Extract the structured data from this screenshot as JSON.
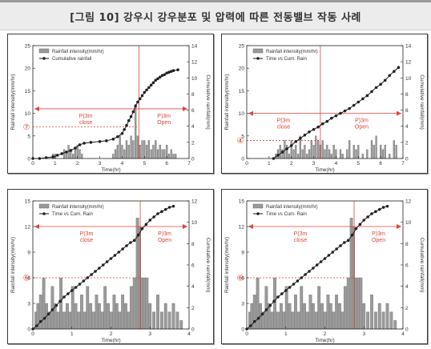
{
  "figure_title": "[그림 10] 강우시 강우분포 및 압력에 따른 전동밸브 작동 사례",
  "chart_data": [
    {
      "type": "bar",
      "xlabel": "Time(hr)",
      "ylabel": "Rainfall intensity(mm/hr)",
      "y2label": "Cumulative rainfall(mm)",
      "xlim": [
        0,
        7
      ],
      "xticks": [
        "0",
        "1",
        "2",
        "3",
        "4",
        "5",
        "6",
        "7"
      ],
      "ylim": [
        0,
        25
      ],
      "yticks": [
        "0",
        "5",
        "10",
        "15",
        "20",
        "25"
      ],
      "y2lim": [
        0,
        14
      ],
      "y2ticks": [
        "0",
        "2",
        "4",
        "6",
        "8",
        "10",
        "12",
        "14"
      ],
      "legend": [
        "Rainfall intensity(mm/hr)",
        "Cumulative rainfall"
      ],
      "legend_position": "top-left",
      "threshold_label": "⑦",
      "threshold_y": 7,
      "switch_x": 4.75,
      "switch_y": 11,
      "left_zone_label": [
        "P(3m",
        "close"
      ],
      "right_zone_label": [
        "P)3m",
        "Open"
      ],
      "bars": [
        [
          0.9,
          1
        ],
        [
          1.0,
          1
        ],
        [
          1.4,
          2
        ],
        [
          1.5,
          1
        ],
        [
          1.6,
          3
        ],
        [
          1.7,
          2
        ],
        [
          1.8,
          1
        ],
        [
          1.9,
          2
        ],
        [
          2.0,
          3
        ],
        [
          2.1,
          2
        ],
        [
          2.2,
          1
        ],
        [
          3.6,
          1
        ],
        [
          3.7,
          2
        ],
        [
          3.8,
          3
        ],
        [
          3.9,
          5
        ],
        [
          4.0,
          3
        ],
        [
          4.1,
          2
        ],
        [
          4.2,
          4
        ],
        [
          4.3,
          3
        ],
        [
          4.4,
          5
        ],
        [
          4.5,
          4
        ],
        [
          4.6,
          12
        ],
        [
          4.7,
          5
        ],
        [
          4.8,
          3
        ],
        [
          4.9,
          4
        ],
        [
          5.0,
          4
        ],
        [
          5.1,
          3
        ],
        [
          5.2,
          4
        ],
        [
          5.3,
          2
        ],
        [
          5.4,
          3
        ],
        [
          5.5,
          4
        ],
        [
          5.6,
          2
        ],
        [
          5.7,
          3
        ],
        [
          5.8,
          2
        ],
        [
          5.9,
          2
        ],
        [
          6.0,
          3
        ],
        [
          6.1,
          1
        ],
        [
          6.2,
          2
        ],
        [
          6.3,
          1
        ],
        [
          6.4,
          1
        ]
      ],
      "series": [
        {
          "name": "Cumulative rainfall",
          "x": [
            0,
            0.3,
            0.6,
            0.9,
            1.1,
            1.3,
            1.5,
            1.7,
            1.9,
            2.1,
            2.3,
            2.6,
            3.0,
            3.3,
            3.6,
            3.8,
            4.0,
            4.1,
            4.2,
            4.3,
            4.4,
            4.5,
            4.6,
            4.7,
            4.8,
            4.9,
            5.0,
            5.1,
            5.2,
            5.3,
            5.4,
            5.5,
            5.6,
            5.7,
            5.8,
            5.9,
            6.0,
            6.1,
            6.2,
            6.3,
            6.5
          ],
          "y": [
            0,
            0,
            0.1,
            0.2,
            0.4,
            0.6,
            0.8,
            1.0,
            1.3,
            1.7,
            1.9,
            2.0,
            2.1,
            2.2,
            2.4,
            2.7,
            3.1,
            3.6,
            4.1,
            4.7,
            5.2,
            5.8,
            6.5,
            7.0,
            7.4,
            7.8,
            8.2,
            8.5,
            8.8,
            9.1,
            9.4,
            9.7,
            9.9,
            10.1,
            10.3,
            10.4,
            10.6,
            10.7,
            10.8,
            10.9,
            11.0
          ]
        }
      ]
    },
    {
      "type": "bar",
      "xlabel": "Time(hr)",
      "ylabel": "Rainfall intensity(mm/hr)",
      "y2label": "Cumulative rainfall(mm)",
      "xlim": [
        0,
        7
      ],
      "xticks": [
        "0",
        "1",
        "2",
        "3",
        "4",
        "5",
        "6",
        "7"
      ],
      "ylim": [
        0,
        25
      ],
      "yticks": [
        "0",
        "5",
        "10",
        "15",
        "20",
        "25"
      ],
      "y2lim": [
        0,
        14
      ],
      "y2ticks": [
        "0",
        "2",
        "4",
        "6",
        "8",
        "10",
        "12",
        "14"
      ],
      "legend": [
        "Rainfall intensity(mm/hr)",
        "Time vs Cum. Rain"
      ],
      "legend_position": "top-left",
      "threshold_label": "④",
      "threshold_y": 4,
      "switch_x": 3.3,
      "switch_y": 10,
      "left_zone_label": [
        "P(3m",
        "close"
      ],
      "right_zone_label": [
        "P)3m",
        "Open"
      ],
      "bars": [
        [
          1.3,
          1
        ],
        [
          1.4,
          2
        ],
        [
          1.5,
          3
        ],
        [
          1.6,
          2
        ],
        [
          1.7,
          4
        ],
        [
          1.8,
          3
        ],
        [
          1.9,
          1
        ],
        [
          2.0,
          4
        ],
        [
          2.1,
          2
        ],
        [
          2.2,
          3
        ],
        [
          2.3,
          1
        ],
        [
          2.4,
          5
        ],
        [
          2.5,
          2
        ],
        [
          2.6,
          3
        ],
        [
          2.7,
          1
        ],
        [
          2.8,
          2
        ],
        [
          2.9,
          4
        ],
        [
          3.0,
          3
        ],
        [
          3.1,
          5
        ],
        [
          3.2,
          4
        ],
        [
          3.3,
          3
        ],
        [
          3.4,
          4
        ],
        [
          3.5,
          2
        ],
        [
          3.6,
          3
        ],
        [
          3.7,
          2
        ],
        [
          3.8,
          1
        ],
        [
          3.9,
          3
        ],
        [
          4.0,
          2
        ],
        [
          4.2,
          2
        ],
        [
          4.3,
          1
        ],
        [
          4.5,
          2
        ],
        [
          4.6,
          4
        ],
        [
          4.8,
          3
        ],
        [
          4.9,
          2
        ],
        [
          5.0,
          3
        ],
        [
          5.2,
          1
        ],
        [
          5.4,
          2
        ],
        [
          5.6,
          4
        ],
        [
          5.7,
          3
        ],
        [
          5.8,
          5
        ],
        [
          6.0,
          3
        ],
        [
          6.1,
          2
        ],
        [
          6.2,
          3
        ],
        [
          6.4,
          1
        ],
        [
          6.6,
          4
        ],
        [
          6.7,
          3
        ]
      ],
      "series": [
        {
          "name": "Time vs Cum. Rain",
          "x": [
            1.2,
            1.4,
            1.6,
            1.8,
            2.0,
            2.2,
            2.4,
            2.6,
            2.8,
            3.0,
            3.2,
            3.4,
            3.6,
            3.8,
            4.0,
            4.2,
            4.4,
            4.6,
            4.8,
            5.0,
            5.2,
            5.4,
            5.6,
            5.8,
            6.0,
            6.2,
            6.4,
            6.6,
            6.8
          ],
          "y": [
            0,
            0.4,
            0.8,
            1.2,
            1.6,
            2.1,
            2.5,
            2.9,
            3.3,
            3.6,
            3.9,
            4.3,
            4.6,
            5.0,
            5.3,
            5.6,
            5.9,
            6.2,
            6.6,
            7.0,
            7.4,
            7.8,
            8.3,
            8.8,
            9.2,
            9.7,
            10.3,
            10.8,
            11.3
          ]
        }
      ]
    },
    {
      "type": "bar",
      "xlabel": "Time(hr)",
      "ylabel": "Rainfall intensity(mm/hr)",
      "y2label": "Cumulative rainfall(mm)",
      "xlim": [
        0,
        4
      ],
      "xticks": [
        "0",
        "1",
        "2",
        "3",
        "4"
      ],
      "ylim": [
        0,
        15
      ],
      "yticks": [
        "0",
        "3",
        "6",
        "9",
        "12",
        "15"
      ],
      "y2lim": [
        0,
        12
      ],
      "y2ticks": [
        "0",
        "2",
        "4",
        "6",
        "8",
        "10",
        "12"
      ],
      "legend": [
        "Rainfall intensity(mm/hr)",
        "Time vs Cum. Rain"
      ],
      "legend_position": "top-left",
      "threshold_label": "⑥",
      "threshold_y": 6,
      "switch_x": 2.75,
      "switch_y": 12,
      "left_zone_label": [
        "P(3m",
        "close"
      ],
      "right_zone_label": [
        "P)3m",
        "Open"
      ],
      "bars": [
        [
          0.08,
          2
        ],
        [
          0.13,
          3
        ],
        [
          0.2,
          4
        ],
        [
          0.28,
          6
        ],
        [
          0.35,
          3
        ],
        [
          0.42,
          2
        ],
        [
          0.5,
          5
        ],
        [
          0.57,
          3
        ],
        [
          0.65,
          2
        ],
        [
          0.72,
          6
        ],
        [
          0.8,
          2
        ],
        [
          0.88,
          3
        ],
        [
          0.95,
          2
        ],
        [
          1.02,
          5
        ],
        [
          1.1,
          3
        ],
        [
          1.18,
          2
        ],
        [
          1.25,
          4
        ],
        [
          1.33,
          2
        ],
        [
          1.4,
          5
        ],
        [
          1.48,
          3
        ],
        [
          1.55,
          2
        ],
        [
          1.63,
          4
        ],
        [
          1.7,
          3
        ],
        [
          1.78,
          2
        ],
        [
          1.85,
          5
        ],
        [
          1.93,
          3
        ],
        [
          2.0,
          2
        ],
        [
          2.08,
          4
        ],
        [
          2.15,
          3
        ],
        [
          2.22,
          2
        ],
        [
          2.3,
          4
        ],
        [
          2.38,
          3
        ],
        [
          2.45,
          2
        ],
        [
          2.52,
          5
        ],
        [
          2.6,
          6
        ],
        [
          2.68,
          13
        ],
        [
          2.73,
          12
        ],
        [
          2.8,
          6
        ],
        [
          2.86,
          6
        ],
        [
          2.92,
          6
        ],
        [
          3.0,
          3
        ],
        [
          3.1,
          2
        ],
        [
          3.2,
          4
        ],
        [
          3.3,
          2
        ],
        [
          3.4,
          3
        ],
        [
          3.5,
          2
        ],
        [
          3.6,
          3
        ],
        [
          3.7,
          2
        ],
        [
          3.8,
          1
        ]
      ],
      "series": [
        {
          "name": "Time vs Cum. Rain",
          "x": [
            0,
            0.1,
            0.2,
            0.3,
            0.4,
            0.5,
            0.6,
            0.7,
            0.8,
            0.9,
            1.0,
            1.1,
            1.2,
            1.3,
            1.4,
            1.5,
            1.6,
            1.7,
            1.8,
            1.9,
            2.0,
            2.1,
            2.2,
            2.3,
            2.4,
            2.5,
            2.6,
            2.7,
            2.8,
            2.9,
            3.0,
            3.1,
            3.2,
            3.3,
            3.4,
            3.5,
            3.6
          ],
          "y": [
            0,
            0.3,
            0.7,
            1.0,
            1.4,
            1.8,
            2.2,
            2.6,
            3.0,
            3.3,
            3.6,
            3.9,
            4.2,
            4.5,
            4.8,
            5.1,
            5.4,
            5.7,
            6.0,
            6.3,
            6.6,
            6.9,
            7.2,
            7.5,
            7.8,
            8.1,
            8.3,
            8.8,
            9.4,
            9.8,
            10.2,
            10.5,
            10.8,
            11.0,
            11.2,
            11.4,
            11.5
          ]
        }
      ]
    },
    {
      "type": "bar",
      "xlabel": "Time(hr)",
      "ylabel": "Rainfall intensity(mm/hr)",
      "y2label": "Cumulative rainfall(mm)",
      "xlim": [
        0,
        4
      ],
      "xticks": [
        "0",
        "1",
        "2",
        "3",
        "4"
      ],
      "ylim": [
        0,
        15
      ],
      "yticks": [
        "0",
        "3",
        "6",
        "9",
        "12",
        "15"
      ],
      "y2lim": [
        0,
        12
      ],
      "y2ticks": [
        "0",
        "2",
        "4",
        "6",
        "8",
        "10",
        "12"
      ],
      "legend": [
        "Rainfall intensity(mm/hr)",
        "Time vs Cum. Rain"
      ],
      "legend_position": "top-left",
      "threshold_label": "⑥",
      "threshold_y": 6,
      "switch_x": 2.75,
      "switch_y": 12,
      "left_zone_label": [
        "P(3m",
        "close"
      ],
      "right_zone_label": [
        "P)3m",
        "Open"
      ],
      "bars": [
        [
          0.08,
          2
        ],
        [
          0.13,
          3
        ],
        [
          0.2,
          4
        ],
        [
          0.28,
          6
        ],
        [
          0.35,
          3
        ],
        [
          0.42,
          2
        ],
        [
          0.5,
          5
        ],
        [
          0.57,
          3
        ],
        [
          0.65,
          2
        ],
        [
          0.72,
          6
        ],
        [
          0.8,
          2
        ],
        [
          0.88,
          3
        ],
        [
          0.95,
          2
        ],
        [
          1.02,
          5
        ],
        [
          1.1,
          3
        ],
        [
          1.18,
          2
        ],
        [
          1.25,
          4
        ],
        [
          1.33,
          2
        ],
        [
          1.4,
          5
        ],
        [
          1.48,
          3
        ],
        [
          1.55,
          2
        ],
        [
          1.63,
          4
        ],
        [
          1.7,
          3
        ],
        [
          1.78,
          2
        ],
        [
          1.85,
          5
        ],
        [
          1.93,
          3
        ],
        [
          2.0,
          2
        ],
        [
          2.08,
          4
        ],
        [
          2.15,
          3
        ],
        [
          2.22,
          2
        ],
        [
          2.3,
          4
        ],
        [
          2.38,
          3
        ],
        [
          2.45,
          2
        ],
        [
          2.52,
          5
        ],
        [
          2.6,
          6
        ],
        [
          2.68,
          13
        ],
        [
          2.73,
          12
        ],
        [
          2.8,
          6
        ],
        [
          2.86,
          6
        ],
        [
          2.92,
          6
        ],
        [
          3.0,
          3
        ],
        [
          3.1,
          2
        ],
        [
          3.2,
          4
        ],
        [
          3.3,
          2
        ],
        [
          3.4,
          3
        ],
        [
          3.5,
          2
        ],
        [
          3.6,
          3
        ],
        [
          3.7,
          2
        ],
        [
          3.8,
          1
        ]
      ],
      "series": [
        {
          "name": "Time vs Cum. Rain",
          "x": [
            0,
            0.1,
            0.2,
            0.3,
            0.4,
            0.5,
            0.6,
            0.7,
            0.8,
            0.9,
            1.0,
            1.1,
            1.2,
            1.3,
            1.4,
            1.5,
            1.6,
            1.7,
            1.8,
            1.9,
            2.0,
            2.1,
            2.2,
            2.3,
            2.4,
            2.5,
            2.6,
            2.7,
            2.8,
            2.9,
            3.0,
            3.1,
            3.2,
            3.3,
            3.4,
            3.5,
            3.6
          ],
          "y": [
            0,
            0.3,
            0.7,
            1.0,
            1.4,
            1.8,
            2.2,
            2.6,
            3.0,
            3.3,
            3.6,
            3.9,
            4.2,
            4.5,
            4.8,
            5.1,
            5.4,
            5.7,
            6.0,
            6.3,
            6.6,
            6.9,
            7.2,
            7.5,
            7.8,
            8.1,
            8.3,
            8.8,
            9.4,
            9.8,
            10.2,
            10.5,
            10.8,
            11.0,
            11.2,
            11.4,
            11.5
          ]
        }
      ]
    }
  ],
  "colors": {
    "bar": "#9a9a9a",
    "line": "#1a1a1a",
    "marker": "#222222",
    "threshold": "#e0443a",
    "text": "#333333"
  }
}
